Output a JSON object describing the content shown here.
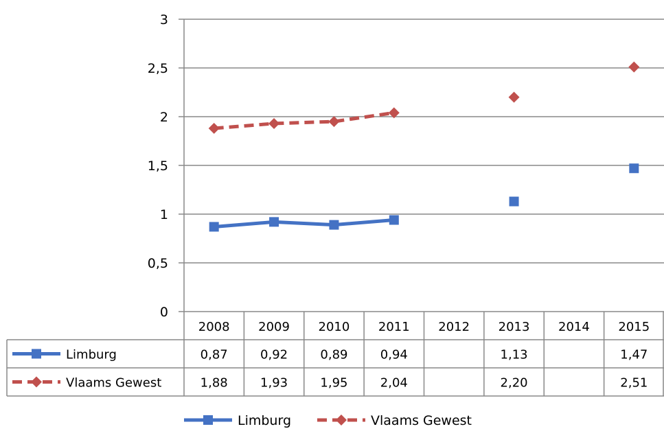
{
  "chart_data": {
    "type": "line",
    "x": [
      "2008",
      "2009",
      "2010",
      "2011",
      "2012",
      "2013",
      "2014",
      "2015"
    ],
    "ylim": [
      0,
      3
    ],
    "yticks": [
      "0",
      "0,5",
      "1",
      "1,5",
      "2",
      "2,5",
      "3"
    ],
    "ytick_values": [
      0,
      0.5,
      1,
      1.5,
      2,
      2.5,
      3
    ],
    "grid": true,
    "legend_position": "bottom",
    "has_data_table": true,
    "series": [
      {
        "name": "Limburg",
        "color": "#4472C4",
        "marker": "square",
        "line_style": "solid",
        "values": [
          0.87,
          0.92,
          0.89,
          0.94,
          null,
          1.13,
          null,
          1.47
        ],
        "labels": [
          "0,87",
          "0,92",
          "0,89",
          "0,94",
          "",
          "1,13",
          "",
          "1,47"
        ]
      },
      {
        "name": "Vlaams Gewest",
        "color": "#C0504D",
        "marker": "diamond",
        "line_style": "dashed",
        "values": [
          1.88,
          1.93,
          1.95,
          2.04,
          null,
          2.2,
          null,
          2.51
        ],
        "labels": [
          "1,88",
          "1,93",
          "1,95",
          "2,04",
          "",
          "2,20",
          "",
          "2,51"
        ]
      }
    ]
  }
}
